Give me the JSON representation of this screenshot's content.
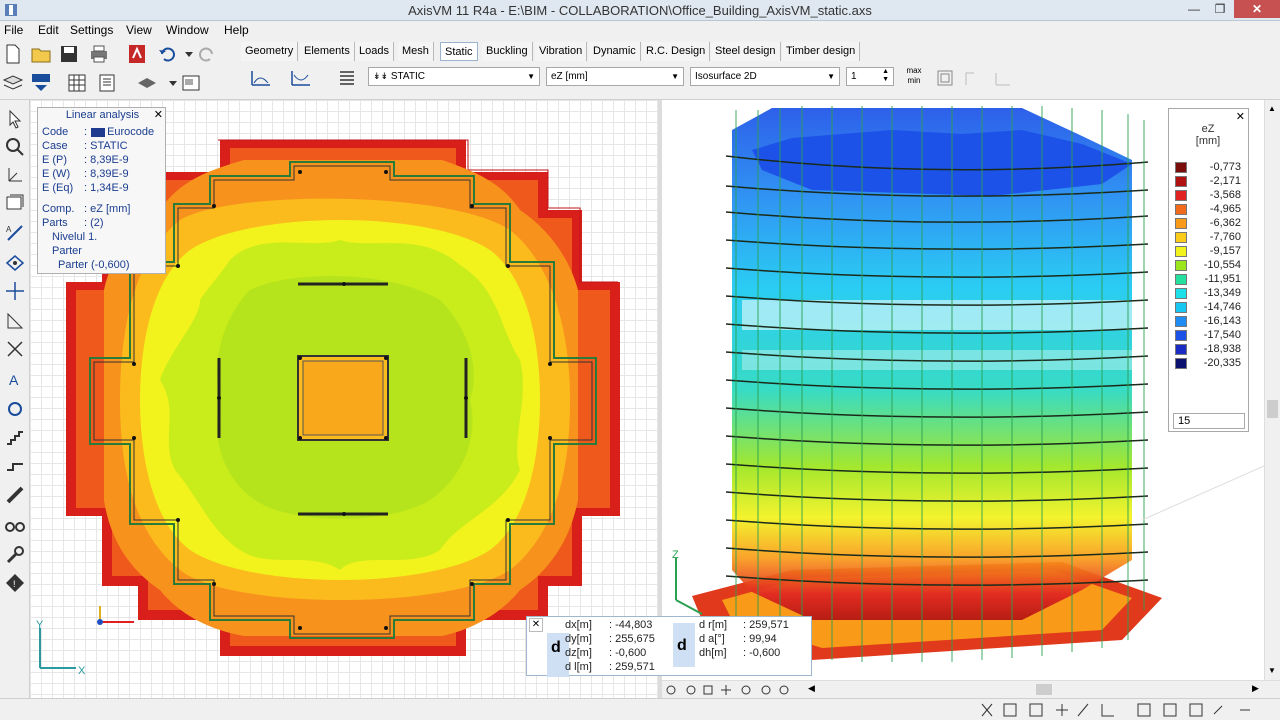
{
  "window": {
    "title": "AxisVM 11 R4a - E:\\BIM - COLLABORATION\\Office_Building_AxisVM_static.axs",
    "controls": [
      "—",
      "❒",
      "✕"
    ]
  },
  "menu": [
    "File",
    "Edit",
    "Settings",
    "View",
    "Window",
    "Help"
  ],
  "tabs": [
    "Geometry",
    "Elements",
    "Loads",
    "Mesh",
    "Static",
    "Buckling",
    "Vibration",
    "Dynamic",
    "R.C. Design",
    "Steel design",
    "Timber design"
  ],
  "active_tab": "Static",
  "result_controls": {
    "case": "STATIC",
    "component": "eZ [mm]",
    "display_mode": "Isosurface 2D",
    "scale_value": "1",
    "minmax_label": "max\nmin"
  },
  "info_panel": {
    "title": "Linear analysis",
    "rows": [
      {
        "label": "Code",
        "value": "Eurocode"
      },
      {
        "label": "Case",
        "value": ": STATIC"
      },
      {
        "label": "E (P)",
        "value": ": 8,39E-9"
      },
      {
        "label": "E (W)",
        "value": ": 8,39E-9"
      },
      {
        "label": "E (Eq)",
        "value": ": 1,34E-9"
      },
      {
        "label": "Comp.",
        "value": ": eZ [mm]"
      },
      {
        "label": "Parts",
        "value": ": (2)"
      }
    ],
    "parts": [
      "Nivelul 1.",
      "Parter",
      "Parter (-0,600)"
    ]
  },
  "legend": {
    "title": "eZ",
    "unit": "[mm]",
    "values": [
      "-0,773",
      "-2,171",
      "-3,568",
      "-4,965",
      "-6,362",
      "-7,760",
      "-9,157",
      "-10,554",
      "-11,951",
      "-13,349",
      "-14,746",
      "-16,143",
      "-17,540",
      "-18,938",
      "-20,335"
    ],
    "colors": [
      "#7a0c0c",
      "#b01212",
      "#e02222",
      "#f26a1b",
      "#f99a18",
      "#fccc1a",
      "#f2f21c",
      "#9be51c",
      "#26e0a0",
      "#1de0e8",
      "#18c8f2",
      "#1e8cf2",
      "#1c52e8",
      "#1a2cc4",
      "#0c1270"
    ],
    "count": "15"
  },
  "coordinates": {
    "left": [
      {
        "label": "dx[m]",
        "value": ": -44,803"
      },
      {
        "label": "dy[m]",
        "value": ": 255,675"
      },
      {
        "label": "dz[m]",
        "value": ": -0,600"
      },
      {
        "label": "d l[m]",
        "value": ": 259,571"
      }
    ],
    "right": [
      {
        "label": "d r[m]",
        "value": ": 259,571"
      },
      {
        "label": "d  a[°]",
        "value": ": 99,94"
      },
      {
        "label": "dh[m]",
        "value": ": -0,600"
      }
    ],
    "marker": "d"
  },
  "axes": {
    "x": "X",
    "y": "Y",
    "z": "Z"
  }
}
